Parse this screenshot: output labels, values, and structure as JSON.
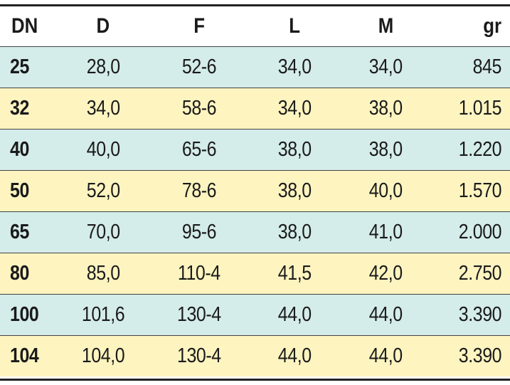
{
  "table": {
    "headers": [
      "DN",
      "D",
      "F",
      "L",
      "M",
      "gr"
    ],
    "row_colors": {
      "teal": "#d4ecea",
      "yellow": "#fdf4c0"
    },
    "rows": [
      [
        "25",
        "28,0",
        "52-6",
        "34,0",
        "34,0",
        "845"
      ],
      [
        "32",
        "34,0",
        "58-6",
        "34,0",
        "38,0",
        "1.015"
      ],
      [
        "40",
        "40,0",
        "65-6",
        "38,0",
        "38,0",
        "1.220"
      ],
      [
        "50",
        "52,0",
        "78-6",
        "38,0",
        "40,0",
        "1.570"
      ],
      [
        "65",
        "70,0",
        "95-6",
        "38,0",
        "41,0",
        "2.000"
      ],
      [
        "80",
        "85,0",
        "110-4",
        "41,5",
        "42,0",
        "2.750"
      ],
      [
        "100",
        "101,6",
        "130-4",
        "44,0",
        "44,0",
        "3.390"
      ],
      [
        "104",
        "104,0",
        "130-4",
        "44,0",
        "44,0",
        "3.390"
      ]
    ]
  }
}
